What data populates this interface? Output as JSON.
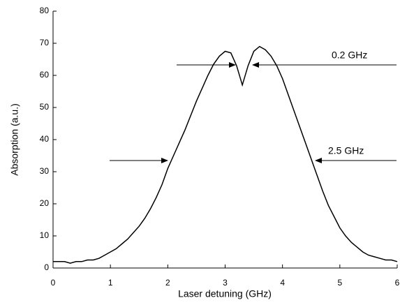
{
  "chart_data": {
    "type": "line",
    "xlabel": "Laser detuning (GHz)",
    "ylabel": "Absorption (a.u.)",
    "x": [
      0,
      0.1,
      0.2,
      0.3,
      0.4,
      0.5,
      0.6,
      0.7,
      0.8,
      0.9,
      1.0,
      1.1,
      1.2,
      1.3,
      1.4,
      1.5,
      1.6,
      1.7,
      1.8,
      1.9,
      2.0,
      2.1,
      2.2,
      2.3,
      2.4,
      2.5,
      2.6,
      2.7,
      2.8,
      2.9,
      3.0,
      3.1,
      3.2,
      3.3,
      3.4,
      3.5,
      3.6,
      3.7,
      3.8,
      3.9,
      4.0,
      4.1,
      4.2,
      4.3,
      4.4,
      4.5,
      4.6,
      4.7,
      4.8,
      4.9,
      5.0,
      5.1,
      5.2,
      5.3,
      5.4,
      5.5,
      5.6,
      5.7,
      5.8,
      5.9,
      6.0
    ],
    "values": [
      2,
      2,
      2,
      1.5,
      2,
      2,
      2.5,
      2.5,
      3,
      4,
      5,
      6,
      7.5,
      9,
      11,
      13,
      15.5,
      18.5,
      22,
      26,
      31,
      35,
      39,
      43,
      47.5,
      52,
      56,
      60,
      63.5,
      66,
      67.5,
      67,
      63,
      57,
      63,
      67.5,
      69,
      68,
      66,
      63,
      59,
      54,
      49,
      44,
      39,
      34,
      29,
      24,
      19.5,
      16,
      12.5,
      10,
      8,
      6.5,
      5,
      4,
      3.5,
      3,
      2.5,
      2.5,
      2
    ],
    "color": "#000000",
    "xlim": [
      0,
      6
    ],
    "xticks": [
      0,
      1,
      2,
      3,
      4,
      5,
      6
    ],
    "ylim": [
      0,
      80
    ],
    "yticks": [
      0,
      10,
      20,
      30,
      40,
      50,
      60,
      70,
      80
    ],
    "annotations": [
      "0.2 GHz",
      "2.5 GHz"
    ]
  }
}
